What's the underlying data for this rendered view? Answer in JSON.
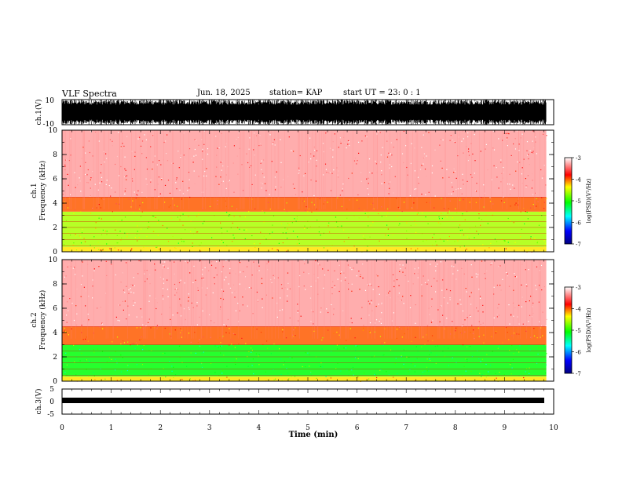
{
  "header": {
    "title": "VLF Spectra",
    "date": "Jun. 18, 2025",
    "station": "station= KAP",
    "start": "start  UT  =   23: 0  : 1"
  },
  "chart_data": [
    {
      "type": "line",
      "id": "ch1-waveform",
      "ylabel": "ch.1(V)",
      "ylim": [
        -10,
        10
      ],
      "yticks": [
        "10",
        "-10"
      ],
      "xlim": [
        0,
        9.85
      ],
      "note": "dense black waveform filling roughly +/-10 V over the full record"
    },
    {
      "type": "heatmap",
      "id": "ch1-spectrogram",
      "ylabel_lines": [
        "ch.1",
        "Frequency  (kHz)"
      ],
      "ylim": [
        0,
        10
      ],
      "yticks": [
        "0",
        "2",
        "4",
        "6",
        "8",
        "10"
      ],
      "xlim": [
        0,
        9.85
      ],
      "bands_khz": [
        {
          "from": 0.0,
          "to": 0.4,
          "level": -4.3
        },
        {
          "from": 0.4,
          "to": 3.3,
          "level": -4.6
        },
        {
          "from": 3.3,
          "to": 4.5,
          "level": -4.0
        },
        {
          "from": 4.5,
          "to": 10.0,
          "level": -3.3
        }
      ],
      "colorbar": {
        "label": "log(PSD)(V²/Hz)",
        "range": [
          -7,
          -3
        ],
        "ticks": [
          "-3",
          "-4",
          "-5",
          "-6",
          "-7"
        ]
      }
    },
    {
      "type": "heatmap",
      "id": "ch2-spectrogram",
      "ylabel_lines": [
        "ch.2",
        "Frequency  (kHz)"
      ],
      "ylim": [
        0,
        10
      ],
      "yticks": [
        "0",
        "2",
        "4",
        "6",
        "8",
        "10"
      ],
      "xlim": [
        0,
        9.85
      ],
      "bands_khz": [
        {
          "from": 0.0,
          "to": 0.4,
          "level": -4.3
        },
        {
          "from": 0.4,
          "to": 3.0,
          "level": -5.1
        },
        {
          "from": 3.0,
          "to": 4.5,
          "level": -4.0
        },
        {
          "from": 4.5,
          "to": 10.0,
          "level": -3.3
        }
      ],
      "colorbar": {
        "label": "log(PSD)(V²/Hz)",
        "range": [
          -7,
          -3
        ],
        "ticks": [
          "-3",
          "-4",
          "-5",
          "-6",
          "-7"
        ]
      }
    },
    {
      "type": "line",
      "id": "ch3-waveform",
      "ylabel": "ch.3(V)",
      "ylim": [
        -5,
        5
      ],
      "yticks": [
        "5",
        "0",
        "-5"
      ],
      "xlim": [
        0,
        9.85
      ],
      "note": "thin band around -1 V"
    }
  ],
  "xaxis": {
    "label": "Time  (min)",
    "range": [
      0,
      10
    ],
    "ticks": [
      "0",
      "1",
      "2",
      "3",
      "4",
      "5",
      "6",
      "7",
      "8",
      "9",
      "10"
    ]
  },
  "colors": {
    "background": "#ffffff",
    "colormap": [
      "#000080",
      "#0000ff",
      "#00ffff",
      "#00ff00",
      "#ffff00",
      "#ff0000",
      "#ffffff"
    ]
  }
}
